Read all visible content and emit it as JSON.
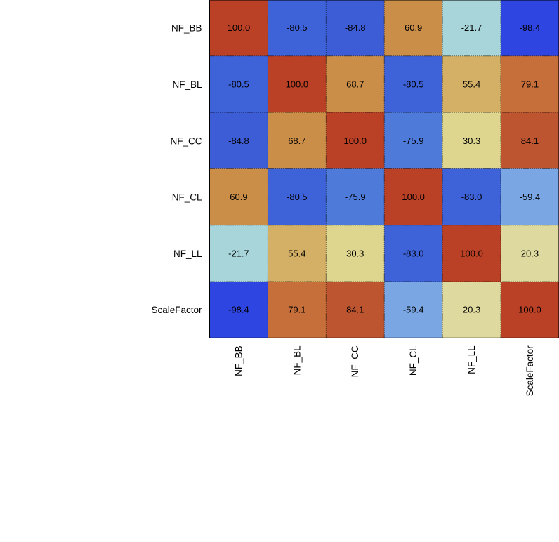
{
  "chart_data": {
    "type": "heatmap",
    "title": "",
    "xlabel": "",
    "ylabel": "",
    "x_labels": [
      "NF_BB",
      "NF_BL",
      "NF_CC",
      "NF_CL",
      "NF_LL",
      "ScaleFactor"
    ],
    "y_labels": [
      "NF_BB",
      "NF_BL",
      "NF_CC",
      "NF_CL",
      "NF_LL",
      "ScaleFactor"
    ],
    "value_range": [
      -100,
      100
    ],
    "grid": true,
    "values": [
      [
        100.0,
        -80.5,
        -84.8,
        60.9,
        -21.7,
        -98.4
      ],
      [
        -80.5,
        100.0,
        68.7,
        -80.5,
        55.4,
        79.1
      ],
      [
        -84.8,
        68.7,
        100.0,
        -75.9,
        30.3,
        84.1
      ],
      [
        60.9,
        -80.5,
        -75.9,
        100.0,
        -83.0,
        -59.4
      ],
      [
        -21.7,
        55.4,
        30.3,
        -83.0,
        100.0,
        20.3
      ],
      [
        -98.4,
        79.1,
        84.1,
        -59.4,
        20.3,
        100.0
      ]
    ],
    "cell_labels": [
      [
        "100.0",
        "-80.5",
        "-84.8",
        "60.9",
        "-21.7",
        "-98.4"
      ],
      [
        "-80.5",
        "100.0",
        "68.7",
        "-80.5",
        "55.4",
        "79.1"
      ],
      [
        "-84.8",
        "68.7",
        "100.0",
        "-75.9",
        "30.3",
        "84.1"
      ],
      [
        "60.9",
        "-80.5",
        "-75.9",
        "100.0",
        "-83.0",
        "-59.4"
      ],
      [
        "-21.7",
        "55.4",
        "30.3",
        "-83.0",
        "100.0",
        "20.3"
      ],
      [
        "-98.4",
        "79.1",
        "84.1",
        "-59.4",
        "20.3",
        "100.0"
      ]
    ],
    "colors": {
      "c_1000": "#BA4126",
      "c_984": "#2E45E2",
      "c_841": "#BD5530",
      "c_848": "#3D5DD7",
      "c_830": "#3E62D8",
      "c_805": "#3E62D8",
      "c_791": "#C66F3B",
      "c_759": "#4E7BDA",
      "c_687": "#CB8E48",
      "c_609": "#CB8E48",
      "c_594": "#7AA6E3",
      "c_554": "#D3B066",
      "c_303": "#DED58E",
      "c_217": "#A8D5DA",
      "c_203": "#DED99E",
      "grid": "#000000",
      "frame": "#000000"
    }
  }
}
